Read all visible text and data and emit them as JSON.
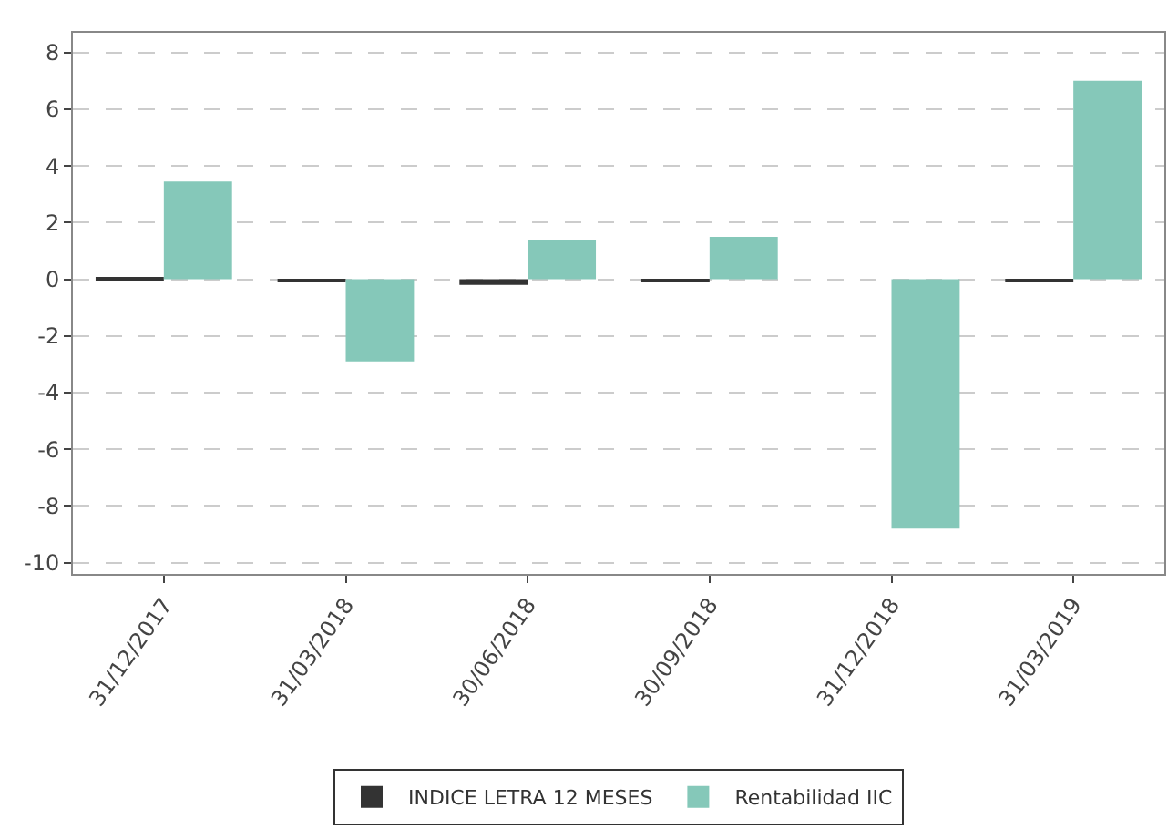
{
  "chart_data": {
    "type": "bar",
    "categories": [
      "31/12/2017",
      "31/03/2018",
      "30/06/2018",
      "30/09/2018",
      "31/12/2018",
      "31/03/2019"
    ],
    "series": [
      {
        "name": "INDICE LETRA 12 MESES",
        "color": "#333333",
        "values": [
          0.05,
          -0.1,
          -0.2,
          -0.1,
          0.0,
          -0.1
        ]
      },
      {
        "name": "Rentabilidad IIC",
        "color": "#85c8b9",
        "values": [
          3.45,
          -2.9,
          1.4,
          1.5,
          -8.8,
          7.0
        ]
      }
    ],
    "ylim": [
      -10.4,
      8.7
    ],
    "yticks": [
      -10,
      -8,
      -6,
      -4,
      -2,
      0,
      2,
      4,
      6,
      8
    ],
    "grid": "y",
    "legend": "bottom"
  }
}
